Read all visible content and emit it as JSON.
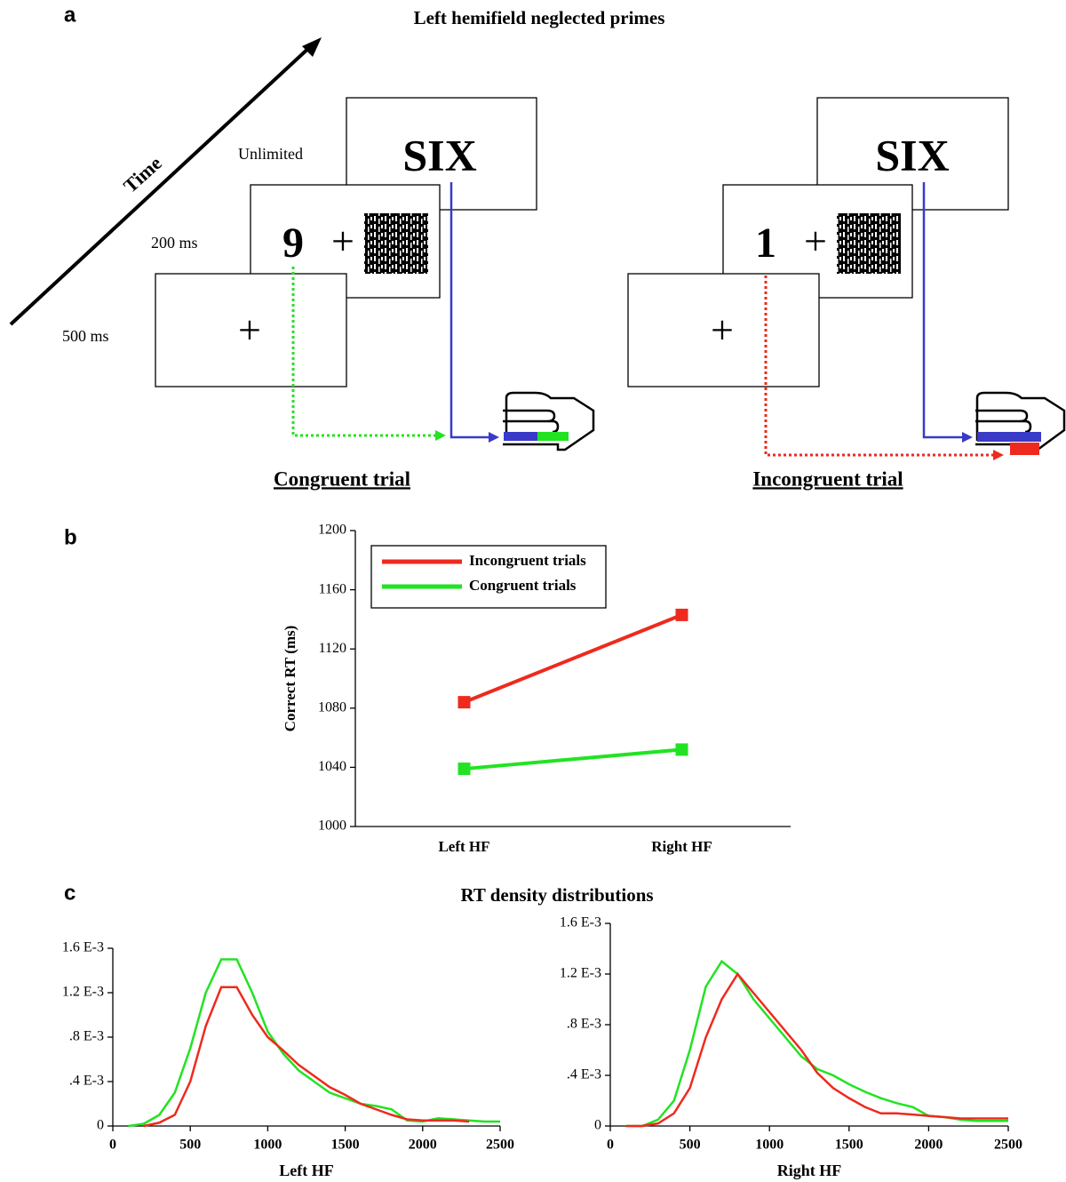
{
  "panel_a": {
    "label": "a",
    "title": "Left hemifield neglected primes",
    "time_label": "Time",
    "durations": [
      "Unlimited",
      "200 ms",
      "500 ms"
    ],
    "fixation": "+",
    "congruent": {
      "prime": "9",
      "target": "SIX",
      "caption": "Congruent trial"
    },
    "incongruent": {
      "prime": "1",
      "target": "SIX",
      "caption": "Incongruent trial"
    }
  },
  "panel_b": {
    "label": "b"
  },
  "panel_c": {
    "label": "c",
    "title": "RT density distributions"
  },
  "chart_data": [
    {
      "type": "line",
      "categories": [
        "Left HF",
        "Right HF"
      ],
      "ylabel": "Correct RT (ms)",
      "ylim": [
        1000,
        1200
      ],
      "yticks": [
        1000,
        1040,
        1080,
        1120,
        1160,
        1200
      ],
      "legend": "upper left",
      "series": [
        {
          "name": "Incongruent trials",
          "color": "#ee2a1e",
          "values": [
            1084,
            1143
          ]
        },
        {
          "name": "Congruent trials",
          "color": "#22e322",
          "values": [
            1039,
            1052
          ]
        }
      ]
    },
    {
      "type": "line",
      "xlabel": "Left HF",
      "x": [
        100,
        200,
        300,
        400,
        500,
        600,
        700,
        800,
        900,
        1000,
        1100,
        1200,
        1300,
        1400,
        1500,
        1600,
        1700,
        1800,
        1900,
        2000,
        2100,
        2200,
        2300,
        2400,
        2500
      ],
      "xlim": [
        0,
        2500
      ],
      "xticks": [
        0,
        500,
        1000,
        1500,
        2000,
        2500
      ],
      "ylim": [
        0,
        0.0016
      ],
      "yticks": [
        0,
        {
          "value": 0.0004,
          "label": ".4 E-3"
        },
        {
          "value": 0.0008,
          "label": ".8 E-3"
        },
        {
          "value": 0.0012,
          "label": "1.2 E-3"
        },
        {
          "value": 0.0016,
          "label": "1.6 E-3"
        }
      ],
      "series": [
        {
          "color": "#22e322",
          "values": [
            0,
            2e-05,
            0.0001,
            0.0003,
            0.0007,
            0.0012,
            0.0015,
            0.0015,
            0.0012,
            0.00085,
            0.00065,
            0.0005,
            0.0004,
            0.0003,
            0.00025,
            0.0002,
            0.00018,
            0.00015,
            5e-05,
            4e-05,
            7e-05,
            6e-05,
            5e-05,
            4e-05,
            4e-05
          ]
        },
        {
          "color": "#ee2a1e",
          "values": [
            null,
            0,
            3e-05,
            0.0001,
            0.0004,
            0.0009,
            0.00125,
            0.00125,
            0.001,
            0.0008,
            0.00068,
            0.00055,
            0.00045,
            0.00035,
            0.00028,
            0.0002,
            0.00015,
            0.0001,
            6e-05,
            5e-05,
            5e-05,
            5e-05,
            4e-05,
            null,
            null
          ]
        }
      ]
    },
    {
      "type": "line",
      "xlabel": "Right HF",
      "x": [
        100,
        200,
        300,
        400,
        500,
        600,
        700,
        800,
        900,
        1000,
        1100,
        1200,
        1300,
        1400,
        1500,
        1600,
        1700,
        1800,
        1900,
        2000,
        2100,
        2200,
        2300,
        2400,
        2500
      ],
      "xlim": [
        0,
        2500
      ],
      "xticks": [
        0,
        500,
        1000,
        1500,
        2000,
        2500
      ],
      "ylim": [
        0,
        0.0016
      ],
      "yticks": [
        0,
        {
          "value": 0.0004,
          "label": ".4 E-3"
        },
        {
          "value": 0.0008,
          "label": ".8 E-3"
        },
        {
          "value": 0.0012,
          "label": "1.2 E-3"
        },
        {
          "value": 0.0016,
          "label": "1.6 E-3"
        }
      ],
      "series": [
        {
          "color": "#22e322",
          "values": [
            0,
            0,
            5e-05,
            0.0002,
            0.0006,
            0.0011,
            0.0013,
            0.0012,
            0.001,
            0.00085,
            0.0007,
            0.00055,
            0.00045,
            0.0004,
            0.00033,
            0.00027,
            0.00022,
            0.00018,
            0.00015,
            8e-05,
            7e-05,
            5e-05,
            4e-05,
            4e-05,
            4e-05
          ]
        },
        {
          "color": "#ee2a1e",
          "values": [
            0,
            0,
            2e-05,
            0.0001,
            0.0003,
            0.0007,
            0.001,
            0.0012,
            0.00105,
            0.0009,
            0.00075,
            0.0006,
            0.00042,
            0.0003,
            0.00022,
            0.00015,
            0.0001,
            0.0001,
            9e-05,
            8e-05,
            7e-05,
            6e-05,
            6e-05,
            6e-05,
            6e-05
          ]
        }
      ]
    }
  ]
}
